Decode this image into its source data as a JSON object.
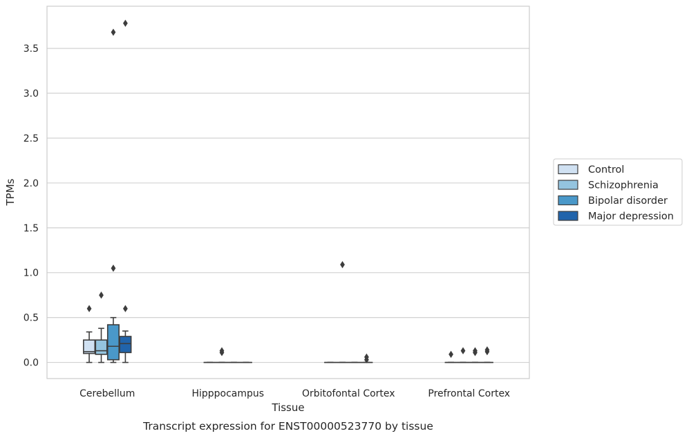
{
  "chart_data": {
    "type": "box",
    "caption": "Transcript expression for ENST00000523770 by tissue",
    "xlabel": "Tissue",
    "ylabel": "TPMs",
    "ylim": [
      -0.18,
      3.97
    ],
    "yticks": [
      0.0,
      0.5,
      1.0,
      1.5,
      2.0,
      2.5,
      3.0,
      3.5
    ],
    "ytick_labels": [
      "0.0",
      "0.5",
      "1.0",
      "1.5",
      "2.0",
      "2.5",
      "3.0",
      "3.5"
    ],
    "grid": "horizontal",
    "legend_position": "right",
    "categories": [
      "Cerebellum",
      "Hipppocampus",
      "Orbitofontal Cortex",
      "Prefrontal Cortex"
    ],
    "series": [
      {
        "name": "Control",
        "color": "#d0e1f2",
        "boxes": [
          {
            "q1": 0.1,
            "median": 0.12,
            "q3": 0.25,
            "whisker_low": 0.0,
            "whisker_high": 0.34,
            "outliers": [
              0.6
            ]
          },
          {
            "q1": 0.0,
            "median": 0.0,
            "q3": 0.0,
            "whisker_low": 0.0,
            "whisker_high": 0.0,
            "outliers": []
          },
          {
            "q1": 0.0,
            "median": 0.0,
            "q3": 0.0,
            "whisker_low": 0.0,
            "whisker_high": 0.0,
            "outliers": []
          },
          {
            "q1": 0.0,
            "median": 0.0,
            "q3": 0.0,
            "whisker_low": 0.0,
            "whisker_high": 0.0,
            "outliers": [
              0.09
            ]
          }
        ]
      },
      {
        "name": "Schizophrenia",
        "color": "#94c4df",
        "boxes": [
          {
            "q1": 0.09,
            "median": 0.13,
            "q3": 0.25,
            "whisker_low": 0.0,
            "whisker_high": 0.38,
            "outliers": [
              0.75
            ]
          },
          {
            "q1": 0.0,
            "median": 0.0,
            "q3": 0.0,
            "whisker_low": 0.0,
            "whisker_high": 0.0,
            "outliers": [
              0.11,
              0.13
            ]
          },
          {
            "q1": 0.0,
            "median": 0.0,
            "q3": 0.0,
            "whisker_low": 0.0,
            "whisker_high": 0.0,
            "outliers": [
              1.09
            ]
          },
          {
            "q1": 0.0,
            "median": 0.0,
            "q3": 0.0,
            "whisker_low": 0.0,
            "whisker_high": 0.0,
            "outliers": [
              0.13
            ]
          }
        ]
      },
      {
        "name": "Bipolar disorder",
        "color": "#4a98c9",
        "boxes": [
          {
            "q1": 0.03,
            "median": 0.18,
            "q3": 0.42,
            "whisker_low": 0.0,
            "whisker_high": 0.5,
            "outliers": [
              1.05,
              3.68
            ]
          },
          {
            "q1": 0.0,
            "median": 0.0,
            "q3": 0.0,
            "whisker_low": 0.0,
            "whisker_high": 0.0,
            "outliers": []
          },
          {
            "q1": 0.0,
            "median": 0.0,
            "q3": 0.0,
            "whisker_low": 0.0,
            "whisker_high": 0.0,
            "outliers": []
          },
          {
            "q1": 0.0,
            "median": 0.0,
            "q3": 0.0,
            "whisker_low": 0.0,
            "whisker_high": 0.0,
            "outliers": [
              0.11,
              0.13
            ]
          }
        ]
      },
      {
        "name": "Major depression",
        "color": "#2164ab",
        "boxes": [
          {
            "q1": 0.11,
            "median": 0.21,
            "q3": 0.29,
            "whisker_low": 0.0,
            "whisker_high": 0.35,
            "outliers": [
              0.6,
              3.78
            ]
          },
          {
            "q1": 0.0,
            "median": 0.0,
            "q3": 0.0,
            "whisker_low": 0.0,
            "whisker_high": 0.0,
            "outliers": []
          },
          {
            "q1": 0.0,
            "median": 0.0,
            "q3": 0.0,
            "whisker_low": 0.0,
            "whisker_high": 0.0,
            "outliers": [
              0.03,
              0.06
            ]
          },
          {
            "q1": 0.0,
            "median": 0.0,
            "q3": 0.0,
            "whisker_low": 0.0,
            "whisker_high": 0.0,
            "outliers": [
              0.12,
              0.14
            ]
          }
        ]
      }
    ]
  }
}
